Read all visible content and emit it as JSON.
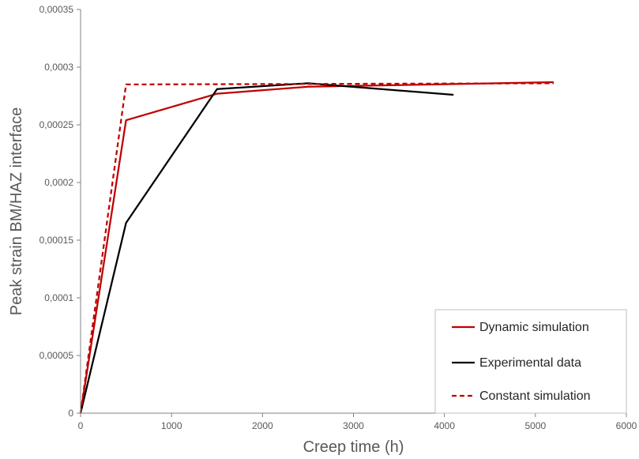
{
  "chart_data": {
    "type": "line",
    "title": "",
    "xlabel": "Creep time (h)",
    "ylabel": "Peak strain BM/HAZ interface",
    "xlim": [
      0,
      6000
    ],
    "ylim": [
      0,
      0.00035
    ],
    "x_ticks": [
      0,
      1000,
      2000,
      3000,
      4000,
      5000,
      6000
    ],
    "x_tick_labels": [
      "0",
      "1000",
      "2000",
      "3000",
      "4000",
      "5000",
      "6000"
    ],
    "y_ticks": [
      0,
      5e-05,
      0.0001,
      0.00015,
      0.0002,
      0.00025,
      0.0003,
      0.00035
    ],
    "y_tick_labels": [
      "0",
      "0,00005",
      "0,0001",
      "0,00015",
      "0,0002",
      "0,00025",
      "0,0003",
      "0,00035"
    ],
    "grid": false,
    "legend": "bottom-right",
    "series": [
      {
        "name": "Dynamic simulation",
        "color": "#c00000",
        "dash": "solid",
        "x": [
          0,
          500,
          1500,
          2500,
          5200
        ],
        "y": [
          0,
          0.000254,
          0.000277,
          0.000283,
          0.000287
        ]
      },
      {
        "name": "Experimental data",
        "color": "#000000",
        "dash": "solid",
        "x": [
          0,
          500,
          1500,
          2500,
          4100
        ],
        "y": [
          0,
          0.000165,
          0.000281,
          0.000286,
          0.000276
        ]
      },
      {
        "name": "Constant simulation",
        "color": "#c00000",
        "dash": "dashed",
        "x": [
          0,
          500,
          5200
        ],
        "y": [
          0,
          0.000285,
          0.000286
        ]
      }
    ]
  }
}
